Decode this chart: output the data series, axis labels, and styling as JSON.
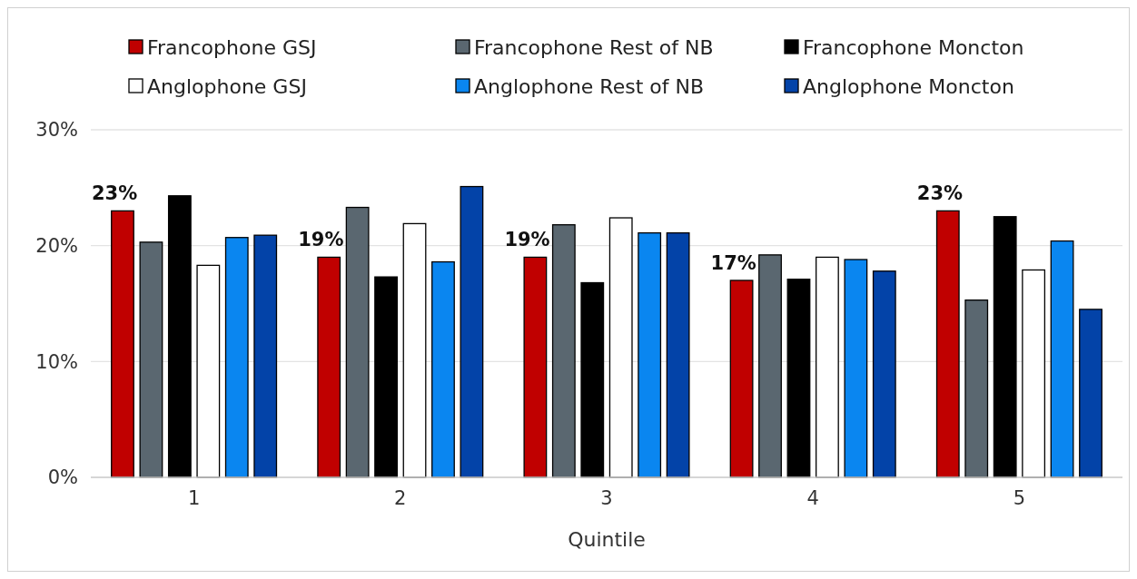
{
  "chart_data": {
    "type": "bar",
    "xlabel": "Quintile",
    "categories": [
      "1",
      "2",
      "3",
      "4",
      "5"
    ],
    "series": [
      {
        "name": "Francophone GSJ",
        "color": "#c00000",
        "values": [
          23,
          19,
          19,
          17,
          23
        ],
        "value_labels": [
          "23%",
          "19%",
          "19%",
          "17%",
          "23%"
        ]
      },
      {
        "name": "Francophone Rest of NB",
        "color": "#5a6770",
        "values": [
          20.3,
          23.3,
          21.8,
          19.2,
          15.3
        ]
      },
      {
        "name": "Francophone Moncton",
        "color": "#000000",
        "values": [
          24.3,
          17.3,
          16.8,
          17.1,
          22.5
        ]
      },
      {
        "name": "Anglophone GSJ",
        "color": "#ffffff",
        "values": [
          18.3,
          21.9,
          22.4,
          19.0,
          17.9
        ]
      },
      {
        "name": "Anglophone Rest of NB",
        "color": "#0a86f0",
        "values": [
          20.7,
          18.6,
          21.1,
          18.8,
          20.4
        ]
      },
      {
        "name": "Anglophone Moncton",
        "color": "#0343a8",
        "values": [
          20.9,
          25.1,
          21.1,
          17.8,
          14.5
        ]
      }
    ],
    "ylim": [
      0,
      30
    ],
    "yticks": [
      {
        "value": 0,
        "label": "0%"
      },
      {
        "value": 10,
        "label": "10%"
      },
      {
        "value": 20,
        "label": "20%"
      },
      {
        "value": 30,
        "label": "30%"
      }
    ],
    "grid": "y",
    "legend": "top"
  }
}
